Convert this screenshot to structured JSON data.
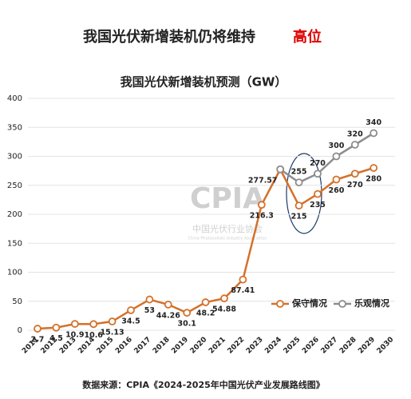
{
  "chart_data": {
    "type": "line",
    "headline": [
      "我国光伏新增装机仍将维持",
      "高位"
    ],
    "title": "我国光伏新增装机预测（GW）",
    "source": "数据来源：CPIA《2024-2025年中国光伏产业发展路线图》",
    "watermark": [
      "CPIA",
      "中国光伏行业协会",
      "China Photovoltaic Industry Association"
    ],
    "categories": [
      "2011",
      "2012",
      "2013",
      "2014",
      "2015",
      "2016",
      "2017",
      "2018",
      "2019",
      "2020",
      "2021",
      "2022",
      "2023",
      "2024",
      "2025",
      "2026",
      "2027",
      "2028",
      "2029",
      "2030"
    ],
    "series": [
      {
        "name": "保守情况",
        "color": "#d4712a",
        "values": [
          2.7,
          4.5,
          10.9,
          10.6,
          15.13,
          34.5,
          53,
          44.26,
          30.1,
          48.2,
          54.88,
          87.41,
          216.3,
          277.57,
          215,
          235,
          260,
          270,
          280,
          null
        ]
      },
      {
        "name": "乐观情况",
        "color": "#8c8c8c",
        "values": [
          null,
          null,
          null,
          null,
          null,
          null,
          null,
          null,
          null,
          null,
          null,
          null,
          null,
          277.57,
          255,
          270,
          300,
          320,
          340,
          null
        ]
      }
    ],
    "ylim": [
      0,
      400
    ],
    "yticks": [
      0,
      50,
      100,
      150,
      200,
      250,
      300,
      350,
      400
    ],
    "grid": true,
    "legend": "lower right"
  }
}
